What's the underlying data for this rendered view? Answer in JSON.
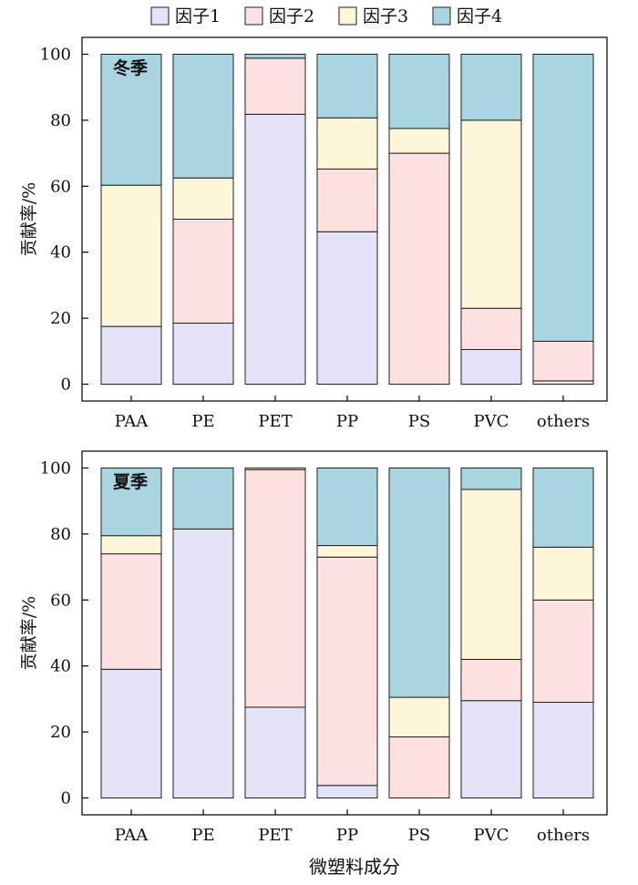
{
  "legend": {
    "items": [
      {
        "label": "因子1",
        "color": "#e3e2f7"
      },
      {
        "label": "因子2",
        "color": "#fde0e0"
      },
      {
        "label": "因子3",
        "color": "#fdf6d8"
      },
      {
        "label": "因子4",
        "color": "#a9d5e1"
      }
    ]
  },
  "xlabel": "微塑料成分",
  "chart_data": [
    {
      "type": "bar",
      "stacked": true,
      "title": "冬季",
      "ylabel": "贡献率/%",
      "ylim": [
        0,
        100
      ],
      "yticks": [
        0,
        20,
        40,
        60,
        80,
        100
      ],
      "categories": [
        "PAA",
        "PE",
        "PET",
        "PP",
        "PS",
        "PVC",
        "others"
      ],
      "series": [
        {
          "name": "因子1",
          "values": [
            17.5,
            18.5,
            81.8,
            46.2,
            0.0,
            10.5,
            1.0
          ]
        },
        {
          "name": "因子2",
          "values": [
            0.0,
            31.5,
            17.0,
            19.0,
            70.0,
            12.5,
            12.0
          ]
        },
        {
          "name": "因子3",
          "values": [
            42.8,
            12.5,
            0.0,
            15.5,
            7.5,
            57.0,
            0.0
          ]
        },
        {
          "name": "因子4",
          "values": [
            39.7,
            37.5,
            1.2,
            19.3,
            22.5,
            20.0,
            87.0
          ]
        }
      ]
    },
    {
      "type": "bar",
      "stacked": true,
      "title": "夏季",
      "ylabel": "贡献率/%",
      "ylim": [
        0,
        100
      ],
      "yticks": [
        0,
        20,
        40,
        60,
        80,
        100
      ],
      "categories": [
        "PAA",
        "PE",
        "PET",
        "PP",
        "PS",
        "PVC",
        "others"
      ],
      "series": [
        {
          "name": "因子1",
          "values": [
            39.0,
            81.5,
            27.5,
            3.8,
            0.0,
            29.5,
            29.0
          ]
        },
        {
          "name": "因子2",
          "values": [
            35.0,
            0.0,
            72.0,
            69.2,
            18.5,
            12.5,
            31.0
          ]
        },
        {
          "name": "因子3",
          "values": [
            5.5,
            0.0,
            0.5,
            3.5,
            12.0,
            51.5,
            16.0
          ]
        },
        {
          "name": "因子4",
          "values": [
            20.5,
            18.5,
            0.0,
            23.5,
            69.5,
            6.5,
            24.0
          ]
        }
      ]
    }
  ]
}
